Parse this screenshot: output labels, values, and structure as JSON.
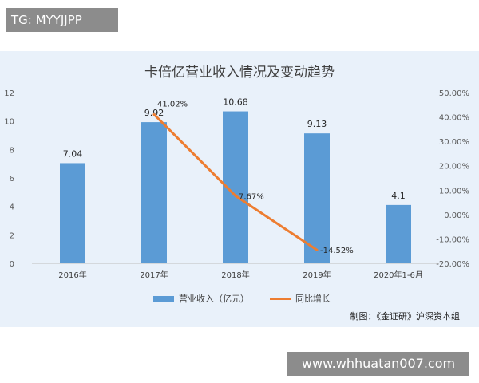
{
  "tag": "TG: MYYJJPP",
  "watermark": "www.whhuatan007.com",
  "source": "制图：《金证研》沪深资本组",
  "colors": {
    "bar": "#5b9bd5",
    "line": "#ed7d31",
    "panel": "#e9f1fa"
  },
  "chart_data": {
    "type": "bar",
    "title": "卡倍亿营业收入情况及变动趋势",
    "categories": [
      "2016年",
      "2017年",
      "2018年",
      "2019年",
      "2020年1-6月"
    ],
    "series": [
      {
        "name": "营业收入（亿元）",
        "type": "bar",
        "axis": "left",
        "values": [
          7.04,
          9.92,
          10.68,
          9.13,
          4.1
        ],
        "labels": [
          "7.04",
          "9.92",
          "10.68",
          "9.13",
          "4.1"
        ]
      },
      {
        "name": "同比增长",
        "type": "line",
        "axis": "right",
        "values": [
          null,
          41.02,
          7.67,
          -14.52,
          null
        ],
        "labels": [
          "",
          "41.02%",
          "7.67%",
          "-14.52%",
          ""
        ]
      }
    ],
    "y_left": {
      "min": 0,
      "max": 12,
      "ticks": [
        "0",
        "2",
        "4",
        "6",
        "8",
        "10",
        "12"
      ]
    },
    "y_right": {
      "min": -20,
      "max": 50,
      "ticks": [
        "-20.00%",
        "-10.00%",
        "0.00%",
        "10.00%",
        "20.00%",
        "30.00%",
        "40.00%",
        "50.00%"
      ]
    },
    "grid": false,
    "legend": "bottom"
  }
}
